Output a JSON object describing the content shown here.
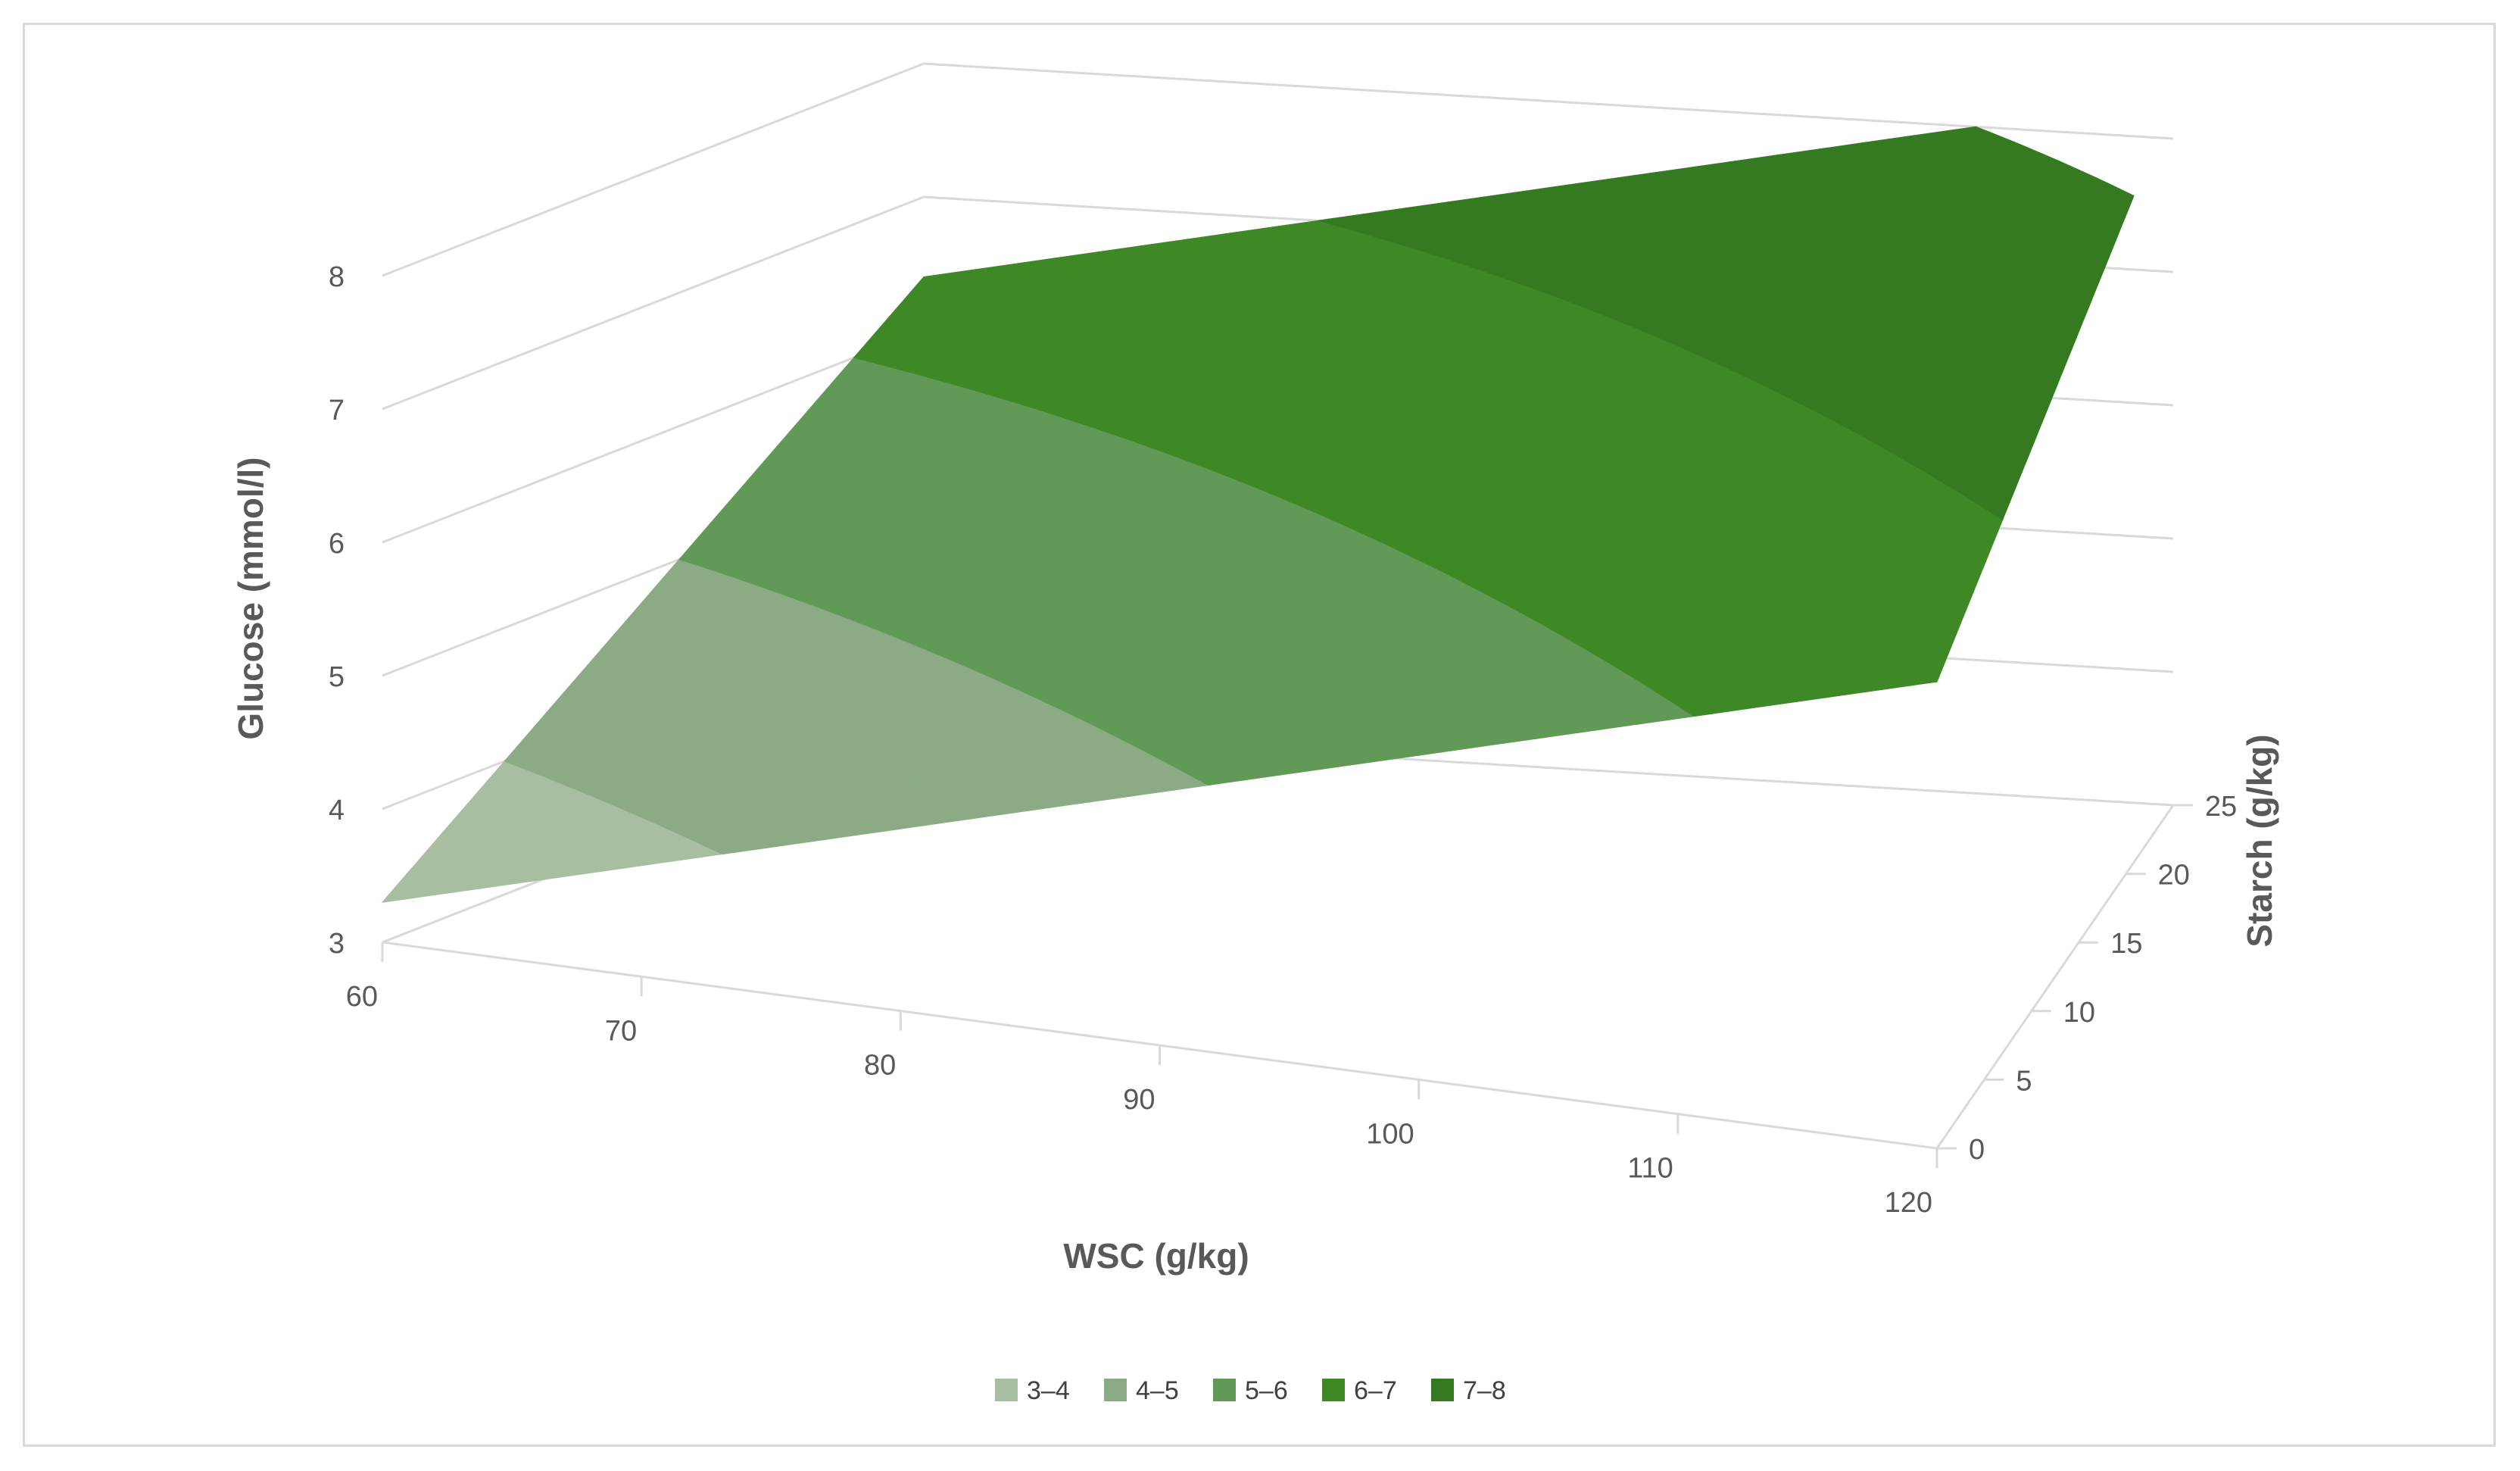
{
  "chart_data": {
    "type": "surface",
    "xlabel": "WSC (g/kg)",
    "ylabel": "Starch (g/kg)",
    "zlabel": "Glucose (mmol/l)",
    "x_ticks": [
      "60",
      "70",
      "80",
      "90",
      "100",
      "110",
      "120"
    ],
    "y_ticks": [
      "0",
      "5",
      "10",
      "15",
      "20",
      "25"
    ],
    "z_ticks": [
      "3",
      "4",
      "5",
      "6",
      "7",
      "8"
    ],
    "xlim": [
      60,
      120
    ],
    "ylim": [
      0,
      25
    ],
    "zlim": [
      3,
      8
    ],
    "corners": [
      {
        "x": 60,
        "y": 0,
        "z": 3.3
      },
      {
        "x": 120,
        "y": 0,
        "z": 6.5
      },
      {
        "x": 60,
        "y": 25,
        "z": 6.4
      },
      {
        "x": 120,
        "y": 25,
        "z": 8.3
      }
    ],
    "legend": [
      {
        "label": "3–4",
        "color": "#a8bea0"
      },
      {
        "label": "4–5",
        "color": "#8aab84"
      },
      {
        "label": "5–6",
        "color": "#619956"
      },
      {
        "label": "6–7",
        "color": "#3f8826"
      },
      {
        "label": "7–8",
        "color": "#357a21"
      }
    ],
    "grid": true,
    "legend_position": "bottom"
  }
}
